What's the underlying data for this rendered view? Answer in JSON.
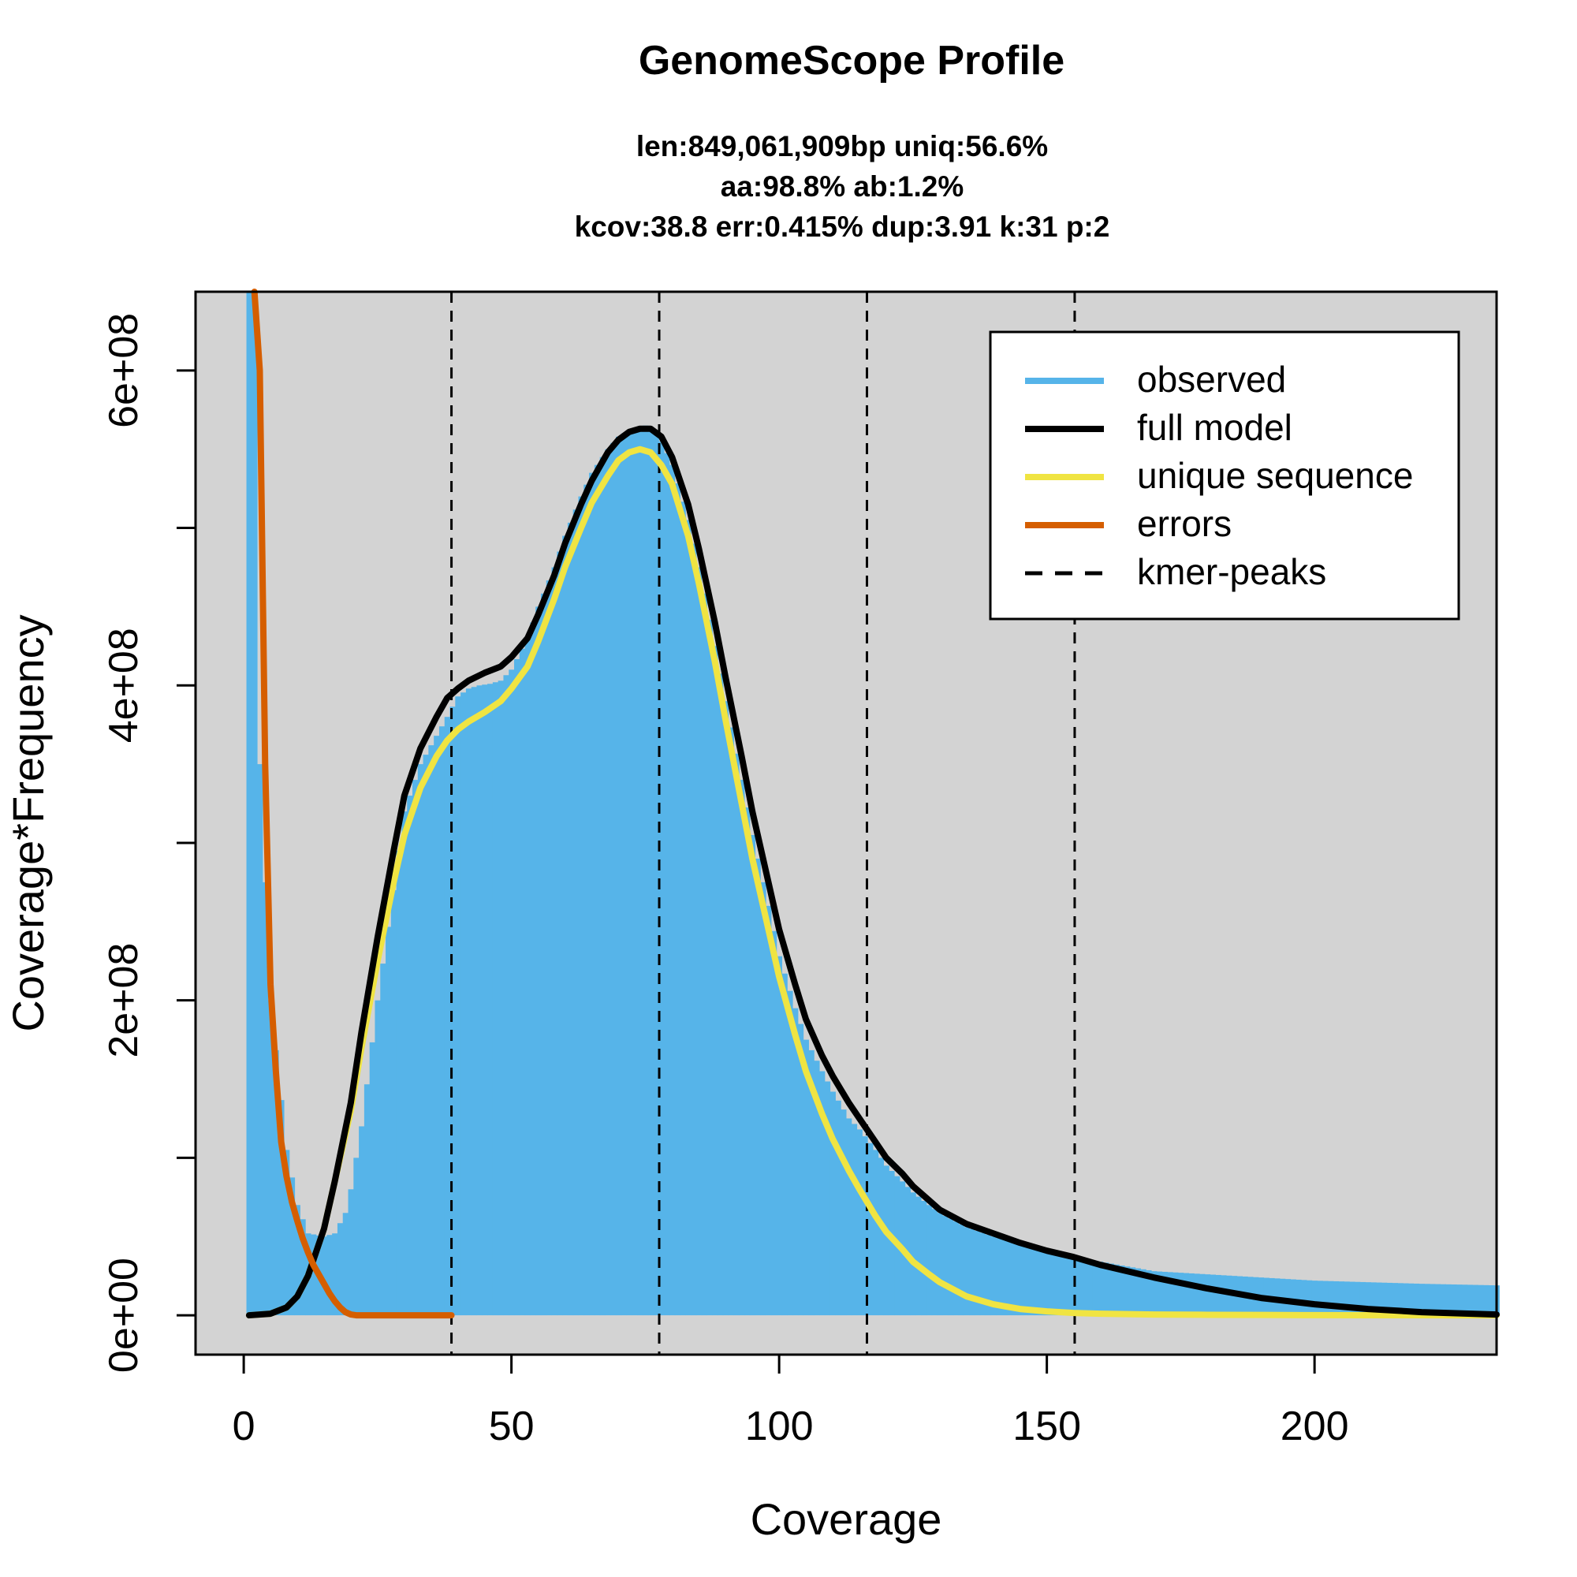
{
  "chart_data": {
    "type": "line",
    "title": "GenomeScope Profile",
    "subtitle_lines": [
      "len:849,061,909bp uniq:56.6%",
      "aa:98.8% ab:1.2%",
      "kcov:38.8 err:0.415%  dup:3.91  k:31 p:2"
    ],
    "xlabel": "Coverage",
    "ylabel": "Coverage*Frequency",
    "xlim": [
      -9,
      234
    ],
    "ylim": [
      -25000000,
      650000000
    ],
    "xticks": [
      0,
      50,
      100,
      150,
      200
    ],
    "xtick_labels": [
      "0",
      "50",
      "100",
      "150",
      "200"
    ],
    "yticks": [
      0,
      100000000,
      200000000,
      300000000,
      400000000,
      500000000,
      600000000
    ],
    "ytick_labels": [
      "0e+00",
      "",
      "2e+08",
      "",
      "4e+08",
      "",
      "6e+08"
    ],
    "plot_background": "#d3d3d3",
    "legend_position": "top-right",
    "kmer_peaks": [
      38.8,
      77.6,
      116.4,
      155.2
    ],
    "series": [
      {
        "name": "observed",
        "kind": "histogram",
        "color": "#56b4e9",
        "x": [
          1,
          2,
          3,
          5,
          8,
          10,
          12,
          15,
          17,
          19,
          20,
          22,
          25,
          28,
          30,
          33,
          36,
          38,
          40,
          42,
          44,
          46,
          48,
          50,
          53,
          55,
          58,
          60,
          63,
          65,
          68,
          70,
          72,
          74,
          75,
          76,
          78,
          80,
          83,
          85,
          88,
          90,
          93,
          95,
          98,
          100,
          103,
          105,
          108,
          110,
          113,
          115,
          118,
          120,
          123,
          125,
          128,
          130,
          135,
          140,
          145,
          150,
          155,
          160,
          165,
          170,
          175,
          180,
          185,
          190,
          195,
          200,
          210,
          220,
          234
        ],
        "values": [
          650000000,
          650000000,
          350000000,
          200000000,
          105000000,
          70000000,
          52000000,
          50000000,
          52000000,
          65000000,
          80000000,
          120000000,
          200000000,
          270000000,
          320000000,
          350000000,
          368000000,
          380000000,
          393000000,
          398000000,
          400000000,
          401000000,
          403000000,
          410000000,
          430000000,
          450000000,
          475000000,
          495000000,
          520000000,
          535000000,
          550000000,
          558000000,
          562000000,
          564000000,
          565000000,
          564000000,
          555000000,
          540000000,
          505000000,
          475000000,
          425000000,
          390000000,
          340000000,
          305000000,
          260000000,
          228000000,
          195000000,
          175000000,
          155000000,
          142000000,
          125000000,
          118000000,
          105000000,
          95000000,
          85000000,
          78000000,
          70000000,
          65000000,
          56000000,
          50000000,
          45000000,
          40000000,
          37000000,
          34000000,
          31000000,
          28000000,
          27000000,
          26000000,
          25000000,
          24000000,
          23000000,
          22000000,
          21000000,
          20000000,
          19000000
        ]
      },
      {
        "name": "full model",
        "kind": "line",
        "color": "#000000",
        "x": [
          1,
          5,
          8,
          10,
          12,
          15,
          17,
          20,
          22,
          25,
          28,
          30,
          33,
          36,
          38,
          40,
          42,
          45,
          48,
          50,
          53,
          55,
          58,
          60,
          63,
          65,
          68,
          70,
          72,
          74,
          76,
          78,
          80,
          83,
          85,
          88,
          90,
          93,
          95,
          98,
          100,
          103,
          105,
          108,
          110,
          113,
          115,
          118,
          120,
          123,
          125,
          128,
          130,
          135,
          140,
          145,
          150,
          155,
          160,
          170,
          180,
          190,
          200,
          210,
          220,
          234
        ],
        "values": [
          0,
          1000000,
          5000000,
          12000000,
          25000000,
          55000000,
          85000000,
          135000000,
          180000000,
          240000000,
          295000000,
          330000000,
          360000000,
          380000000,
          392000000,
          398000000,
          403000000,
          408000000,
          412000000,
          418000000,
          430000000,
          445000000,
          470000000,
          490000000,
          515000000,
          530000000,
          548000000,
          556000000,
          561000000,
          563000000,
          563000000,
          558000000,
          545000000,
          515000000,
          487000000,
          440000000,
          405000000,
          355000000,
          320000000,
          275000000,
          245000000,
          210000000,
          188000000,
          165000000,
          152000000,
          135000000,
          125000000,
          110000000,
          100000000,
          90000000,
          82000000,
          73000000,
          67000000,
          58000000,
          52000000,
          46000000,
          41000000,
          37000000,
          32000000,
          24000000,
          17000000,
          11000000,
          7000000,
          4000000,
          2000000,
          500000
        ]
      },
      {
        "name": "unique sequence",
        "kind": "line",
        "color": "#f0e442",
        "x": [
          1,
          5,
          8,
          10,
          12,
          15,
          17,
          20,
          22,
          25,
          28,
          30,
          33,
          36,
          38,
          40,
          42,
          45,
          48,
          50,
          53,
          55,
          58,
          60,
          63,
          65,
          68,
          70,
          72,
          74,
          76,
          78,
          80,
          83,
          85,
          88,
          90,
          93,
          95,
          98,
          100,
          103,
          105,
          108,
          110,
          113,
          115,
          118,
          120,
          123,
          125,
          128,
          130,
          135,
          140,
          145,
          150,
          155,
          160,
          170,
          180,
          190,
          200,
          210,
          220,
          234
        ],
        "values": [
          0,
          1000000,
          5000000,
          12000000,
          25000000,
          55000000,
          85000000,
          130000000,
          170000000,
          225000000,
          275000000,
          305000000,
          335000000,
          355000000,
          365000000,
          372000000,
          377000000,
          383000000,
          390000000,
          398000000,
          412000000,
          428000000,
          455000000,
          475000000,
          500000000,
          516000000,
          533000000,
          543000000,
          548000000,
          550000000,
          548000000,
          540000000,
          528000000,
          495000000,
          465000000,
          415000000,
          378000000,
          325000000,
          290000000,
          245000000,
          215000000,
          178000000,
          155000000,
          128000000,
          112000000,
          92000000,
          80000000,
          63000000,
          53000000,
          42000000,
          34000000,
          26000000,
          21000000,
          12000000,
          7000000,
          4000000,
          2500000,
          1500000,
          1000000,
          500000,
          300000,
          200000,
          100000,
          50000,
          20000,
          0
        ]
      },
      {
        "name": "errors",
        "kind": "line",
        "color": "#d55e00",
        "x": [
          2,
          3,
          4,
          5,
          6,
          7,
          8,
          9,
          10,
          11,
          12,
          13,
          14,
          15,
          16,
          17,
          18,
          19,
          20,
          21,
          25,
          30,
          35,
          38.8
        ],
        "values": [
          650000000,
          600000000,
          350000000,
          210000000,
          155000000,
          110000000,
          88000000,
          72000000,
          60000000,
          49000000,
          40000000,
          32000000,
          26000000,
          20000000,
          14000000,
          9000000,
          5000000,
          2000000,
          500000,
          0,
          0,
          0,
          0,
          0
        ]
      }
    ],
    "legend": [
      {
        "label": "observed",
        "color": "#56b4e9",
        "style": "solid"
      },
      {
        "label": "full model",
        "color": "#000000",
        "style": "solid"
      },
      {
        "label": "unique sequence",
        "color": "#f0e442",
        "style": "solid"
      },
      {
        "label": "errors",
        "color": "#d55e00",
        "style": "solid"
      },
      {
        "label": "kmer-peaks",
        "color": "#000000",
        "style": "dashed"
      }
    ]
  }
}
